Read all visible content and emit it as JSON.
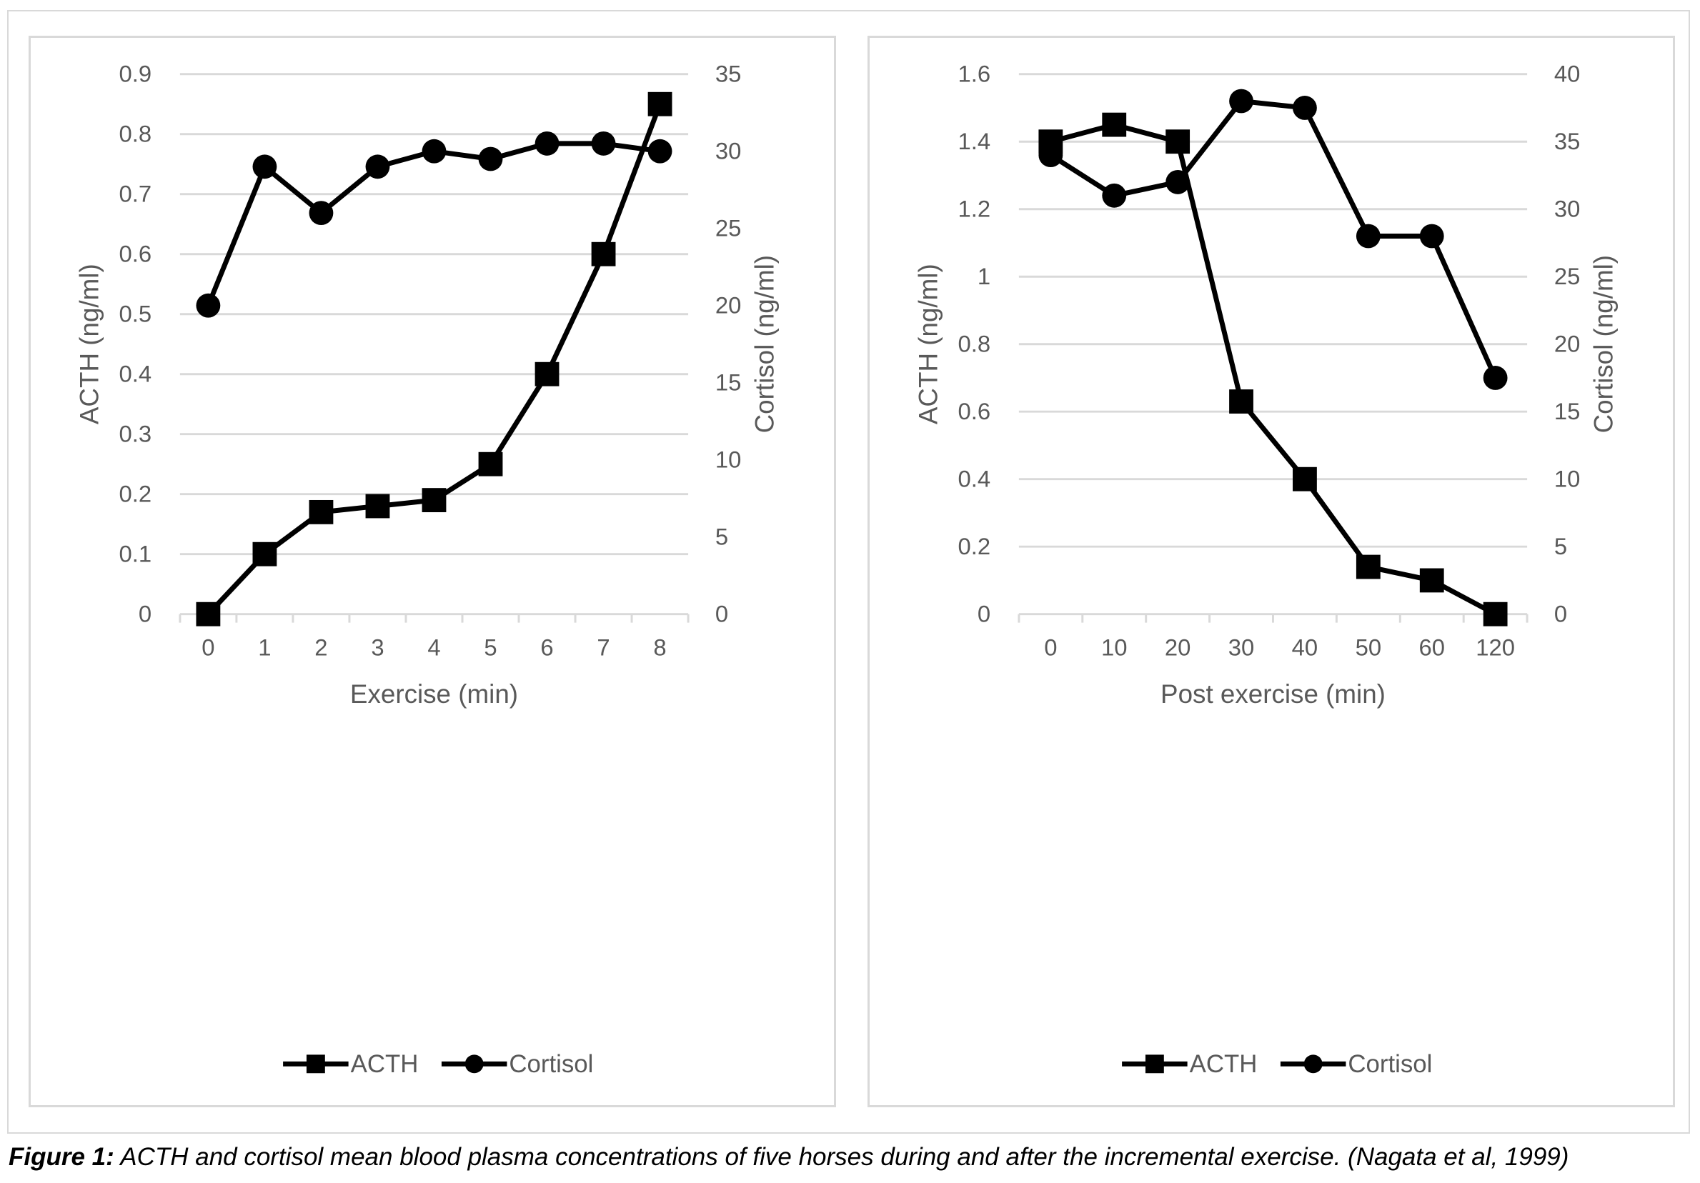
{
  "caption": {
    "label": "Figure 1:",
    "text": " ACTH and cortisol mean blood plasma concentrations of five horses during and after the incremental exercise. (Nagata et al, 1999)"
  },
  "chart_data": [
    {
      "type": "line",
      "title": "",
      "xlabel": "Exercise (min)",
      "ylabel": "ACTH (ng/ml)",
      "y2label": "Cortisol (ng/ml)",
      "categories": [
        "0",
        "1",
        "2",
        "3",
        "4",
        "5",
        "6",
        "7",
        "8"
      ],
      "ylim": [
        0,
        0.9
      ],
      "y_ticks": [
        "0",
        "0.1",
        "0.2",
        "0.3",
        "0.4",
        "0.5",
        "0.6",
        "0.7",
        "0.8",
        "0.9"
      ],
      "y2lim": [
        0,
        35
      ],
      "y2_ticks": [
        "0",
        "5",
        "10",
        "15",
        "20",
        "25",
        "30",
        "35"
      ],
      "grid": true,
      "legend_position": "bottom",
      "series": [
        {
          "name": "ACTH",
          "axis": "left",
          "marker": "square",
          "values": [
            0,
            0.1,
            0.17,
            0.18,
            0.19,
            0.25,
            0.4,
            0.6,
            0.85
          ]
        },
        {
          "name": "Cortisol",
          "axis": "right",
          "marker": "circle",
          "values": [
            20,
            29,
            26,
            29,
            30,
            29.5,
            30.5,
            30.5,
            30
          ]
        }
      ]
    },
    {
      "type": "line",
      "title": "",
      "xlabel": "Post exercise (min)",
      "ylabel": "ACTH (ng/ml)",
      "y2label": "Cortisol (ng/ml)",
      "categories": [
        "0",
        "10",
        "20",
        "30",
        "40",
        "50",
        "60",
        "120"
      ],
      "ylim": [
        0,
        1.6
      ],
      "y_ticks": [
        "0",
        "0.2",
        "0.4",
        "0.6",
        "0.8",
        "1",
        "1.2",
        "1.4",
        "1.6"
      ],
      "y2lim": [
        0,
        40
      ],
      "y2_ticks": [
        "0",
        "5",
        "10",
        "15",
        "20",
        "25",
        "30",
        "35",
        "40"
      ],
      "grid": true,
      "legend_position": "bottom",
      "series": [
        {
          "name": "ACTH",
          "axis": "left",
          "marker": "square",
          "values": [
            1.4,
            1.45,
            1.4,
            0.63,
            0.4,
            0.14,
            0.1,
            0
          ]
        },
        {
          "name": "Cortisol",
          "axis": "right",
          "marker": "circle",
          "values": [
            34,
            31,
            32,
            38,
            37.5,
            28,
            28,
            17.5
          ]
        }
      ]
    }
  ]
}
